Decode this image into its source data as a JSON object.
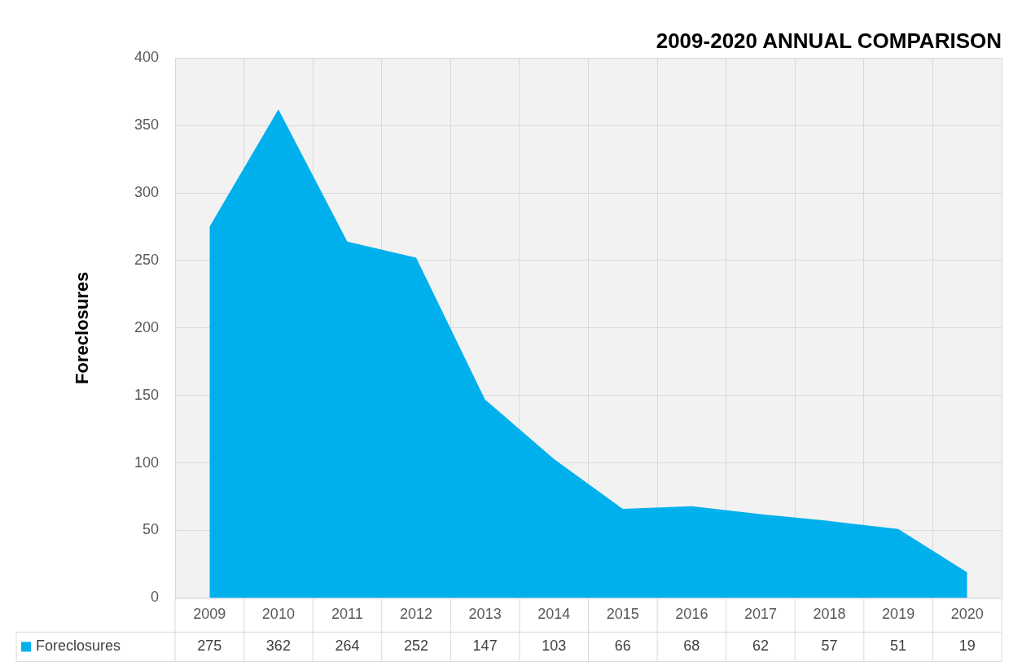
{
  "chart_data": {
    "type": "area",
    "title": "2009-2020 ANNUAL COMPARISON",
    "ylabel": "Foreclosures",
    "categories": [
      "2009",
      "2010",
      "2011",
      "2012",
      "2013",
      "2014",
      "2015",
      "2016",
      "2017",
      "2018",
      "2019",
      "2020"
    ],
    "series": [
      {
        "name": "Foreclosures",
        "color": "#00b0ec",
        "values": [
          275,
          362,
          264,
          252,
          147,
          103,
          66,
          68,
          62,
          57,
          51,
          19
        ]
      }
    ],
    "ylim": [
      0,
      400
    ],
    "yticks": [
      0,
      50,
      100,
      150,
      200,
      250,
      300,
      350,
      400
    ],
    "grid": true,
    "legend": "bottom",
    "data_labels": true
  }
}
